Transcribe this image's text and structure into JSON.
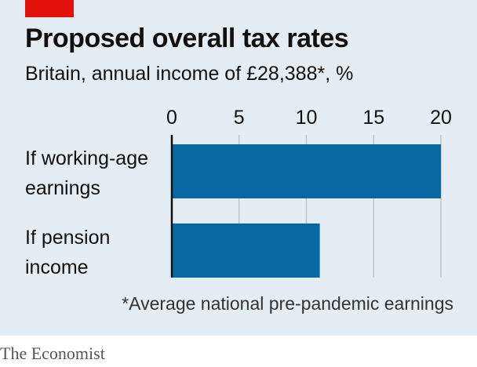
{
  "brand": {
    "name": "The Economist",
    "accent_color": "#e3120b"
  },
  "chart_data": {
    "type": "bar",
    "orientation": "horizontal",
    "title": "Proposed overall tax rates",
    "subtitle": "Britain, annual income of £28,388*, %",
    "categories": [
      "If working-age earnings",
      "If pension income"
    ],
    "category_lines": [
      [
        "If working-age",
        "earnings"
      ],
      [
        "If pension",
        "income"
      ]
    ],
    "values": [
      20,
      11
    ],
    "xlim": [
      0,
      20
    ],
    "xticks": [
      "0",
      "5",
      "10",
      "15",
      "20"
    ],
    "xtick_values": [
      0,
      5,
      10,
      15,
      20
    ],
    "grid": true,
    "bar_color": "#0868a2",
    "footnote": "*Average national pre-pandemic earnings"
  }
}
